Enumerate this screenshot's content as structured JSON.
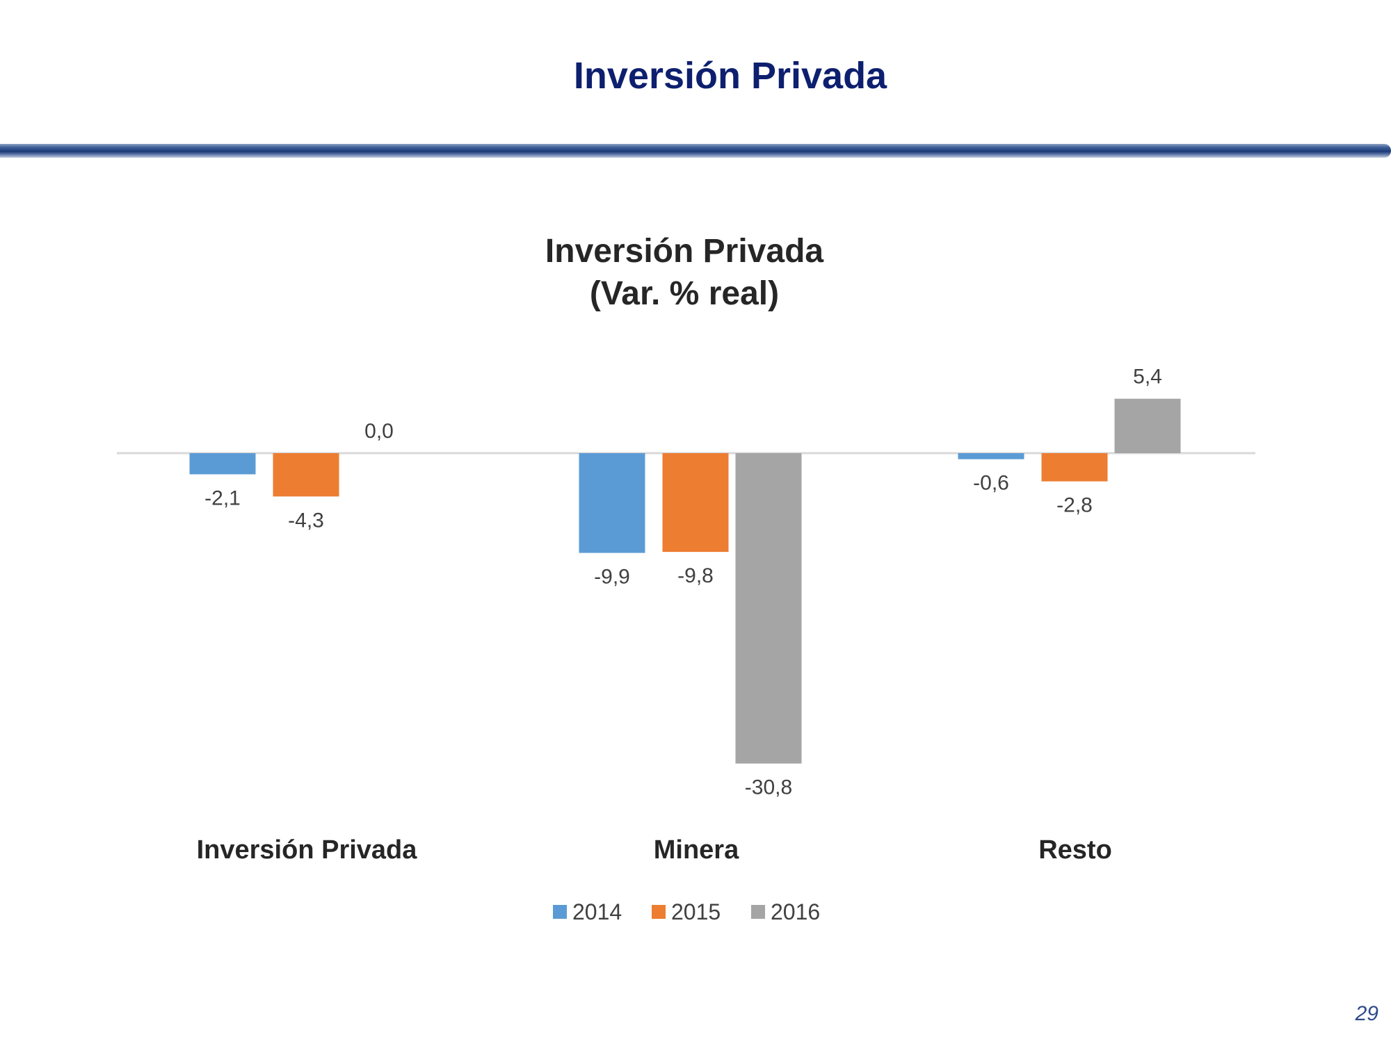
{
  "slide": {
    "title": "Inversión Privada",
    "page_number": "29"
  },
  "colors": {
    "title": "#0d1f6e",
    "series_2014": "#5b9bd5",
    "series_2015": "#ed7d31",
    "series_2016": "#a5a5a5",
    "axis": "#d9d9d9",
    "label": "#404040"
  },
  "chart_data": {
    "type": "bar",
    "title": "Inversión Privada",
    "subtitle": "(Var. % real)",
    "categories": [
      "Inversión Privada",
      "Minera",
      "Resto"
    ],
    "series": [
      {
        "name": "2014",
        "values": [
          -2.1,
          -9.9,
          -0.6
        ],
        "labels": [
          "-2,1",
          "-9,9",
          "-0,6"
        ]
      },
      {
        "name": "2015",
        "values": [
          -4.3,
          -9.8,
          -2.8
        ],
        "labels": [
          "-4,3",
          "-9,8",
          "-2,8"
        ]
      },
      {
        "name": "2016",
        "values": [
          0.0,
          -30.8,
          5.4
        ],
        "labels": [
          "0,0",
          "-30,8",
          "5,4"
        ]
      }
    ],
    "ylim": [
      -33,
      8
    ],
    "grid": false,
    "legend": "bottom",
    "data_labels": true
  }
}
